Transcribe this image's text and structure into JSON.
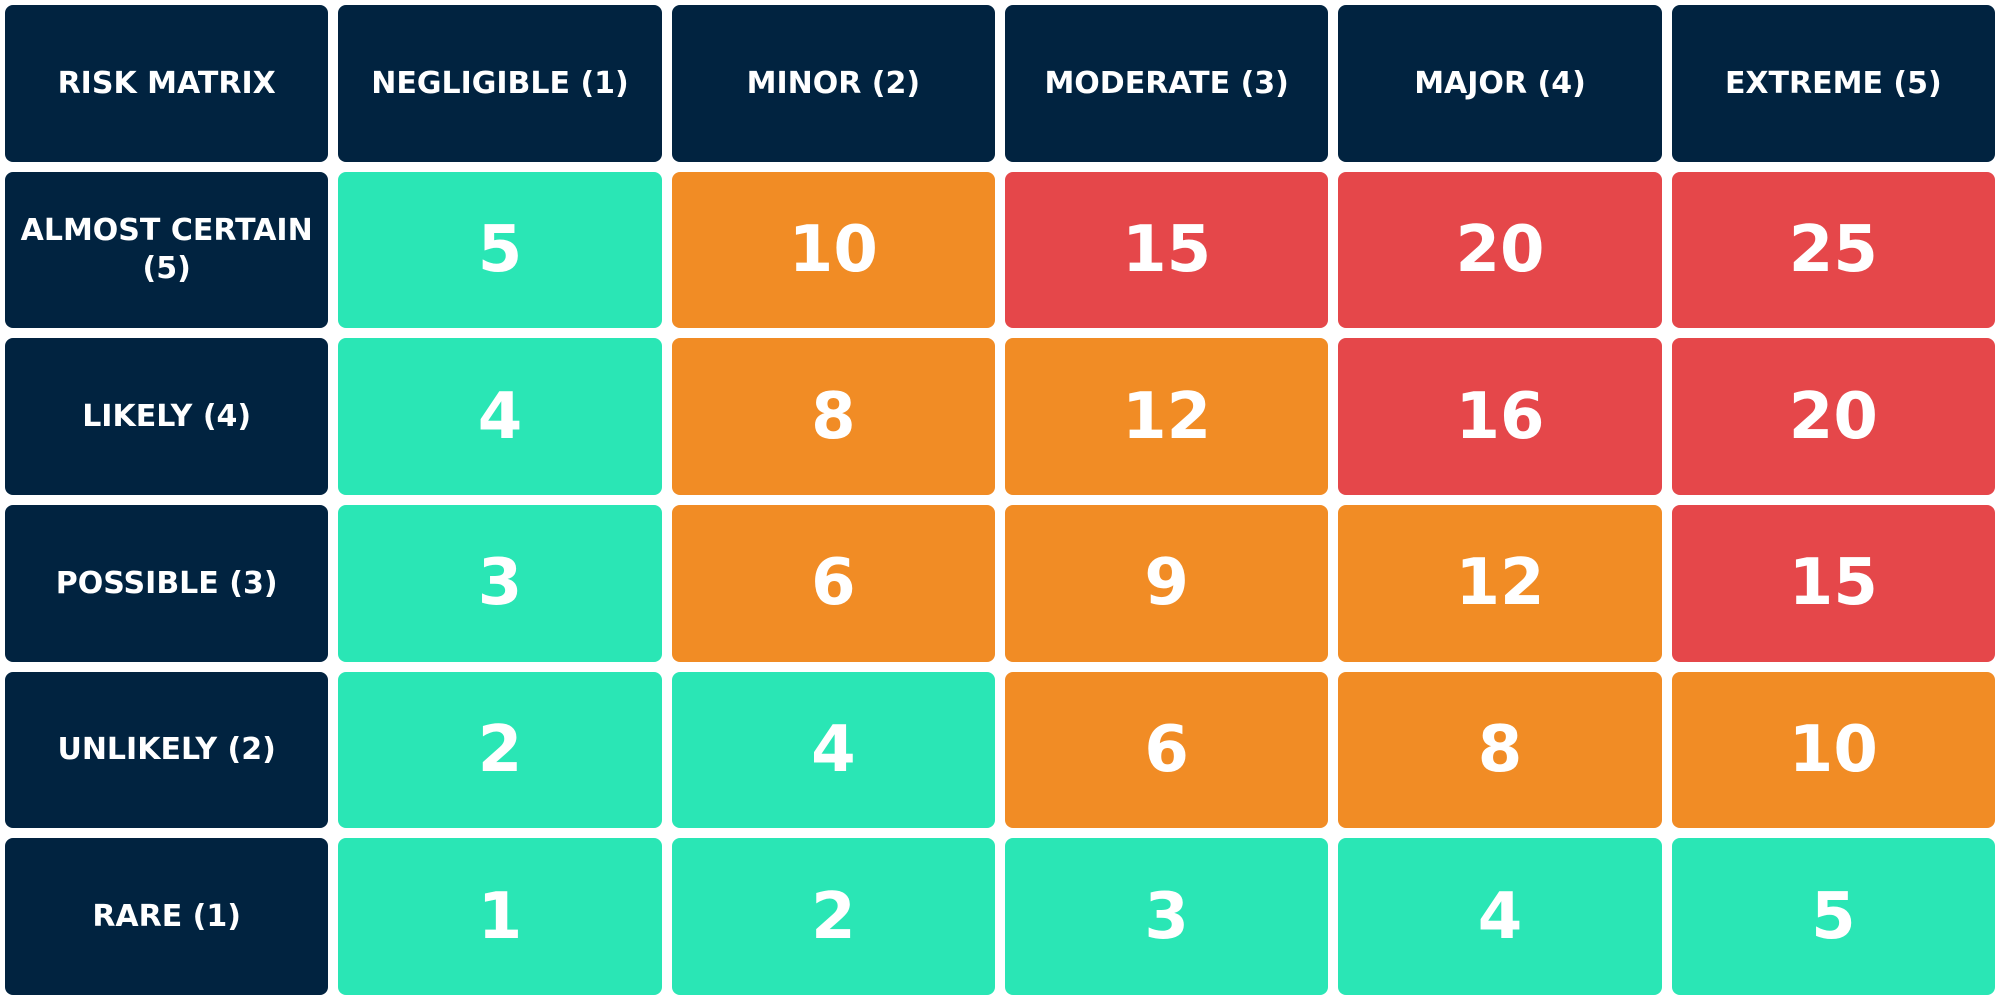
{
  "header": {
    "title": "RISK MATRIX"
  },
  "columns": [
    "NEGLIGIBLE (1)",
    "MINOR (2)",
    "MODERATE (3)",
    "MAJOR (4)",
    "EXTREME (5)"
  ],
  "rows": [
    {
      "label": "ALMOST CERTAIN (5)",
      "values": [
        5,
        10,
        15,
        20,
        25
      ],
      "colors": [
        "#2ae6b5",
        "#f18c25",
        "#e5474a",
        "#e5474a",
        "#e5474a"
      ]
    },
    {
      "label": "LIKELY (4)",
      "values": [
        4,
        8,
        12,
        16,
        20
      ],
      "colors": [
        "#2ae6b5",
        "#f18c25",
        "#f18c25",
        "#e5474a",
        "#e5474a"
      ]
    },
    {
      "label": "POSSIBLE (3)",
      "values": [
        3,
        6,
        9,
        12,
        15
      ],
      "colors": [
        "#2ae6b5",
        "#f18c25",
        "#f18c25",
        "#f18c25",
        "#e5474a"
      ]
    },
    {
      "label": "UNLIKELY (2)",
      "values": [
        2,
        4,
        6,
        8,
        10
      ],
      "colors": [
        "#2ae6b5",
        "#2ae6b5",
        "#f18c25",
        "#f18c25",
        "#f18c25"
      ]
    },
    {
      "label": "RARE (1)",
      "values": [
        1,
        2,
        3,
        4,
        5
      ],
      "colors": [
        "#2ae6b5",
        "#2ae6b5",
        "#2ae6b5",
        "#2ae6b5",
        "#2ae6b5"
      ]
    }
  ]
}
